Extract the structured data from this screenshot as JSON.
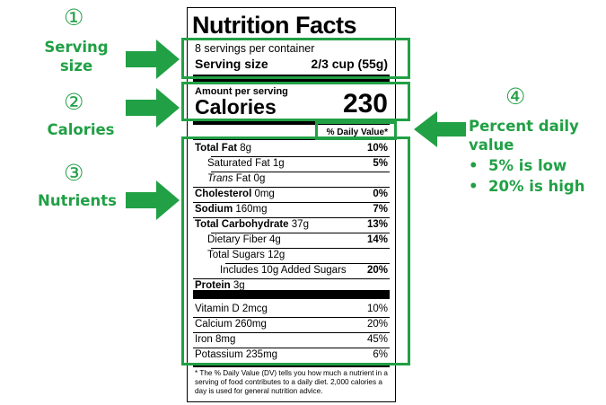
{
  "annotations": [
    {
      "number": "①",
      "lines": [
        "Serving",
        "size"
      ]
    },
    {
      "number": "②",
      "lines": [
        "Calories"
      ]
    },
    {
      "number": "③",
      "lines": [
        "Nutrients"
      ]
    },
    {
      "number": "④",
      "lines": [
        "Percent daily",
        "value"
      ],
      "bullets": [
        "5% is low",
        "20% is high"
      ]
    }
  ],
  "colors": {
    "accent": "#21a045"
  },
  "label": {
    "title": "Nutrition Facts",
    "servings_per_container": "8 servings per container",
    "serving_size_label": "Serving size",
    "serving_size_value": "2/3 cup (55g)",
    "amount_per_serving": "Amount per serving",
    "calories_label": "Calories",
    "calories_value": "230",
    "dv_header": "% Daily Value*",
    "nutrients": [
      {
        "name": "Total Fat",
        "amount": "8g",
        "dv": "10%"
      },
      {
        "name": "Saturated Fat",
        "amount": "1g",
        "dv": "5%"
      },
      {
        "name": "Trans",
        "amount": "Fat 0g",
        "dv": ""
      },
      {
        "name": "Cholesterol",
        "amount": "0mg",
        "dv": "0%"
      },
      {
        "name": "Sodium",
        "amount": "160mg",
        "dv": "7%"
      },
      {
        "name": "Total Carbohydrate",
        "amount": "37g",
        "dv": "13%"
      },
      {
        "name": "Dietary Fiber",
        "amount": "4g",
        "dv": "14%"
      },
      {
        "name": "Total Sugars",
        "amount": "12g",
        "dv": ""
      },
      {
        "name": "Includes 10g Added Sugars",
        "amount": "",
        "dv": "20%"
      },
      {
        "name": "Protein",
        "amount": "3g",
        "dv": ""
      }
    ],
    "vitamins": [
      {
        "name": "Vitamin D 2mcg",
        "dv": "10%"
      },
      {
        "name": "Calcium 260mg",
        "dv": "20%"
      },
      {
        "name": "Iron 8mg",
        "dv": "45%"
      },
      {
        "name": "Potassium 235mg",
        "dv": "6%"
      }
    ],
    "footnote": "* The % Daily Value (DV) tells you how much a nutrient in a serving of food contributes to a daily diet. 2,000 calories a day is used for general nutrition advice."
  }
}
